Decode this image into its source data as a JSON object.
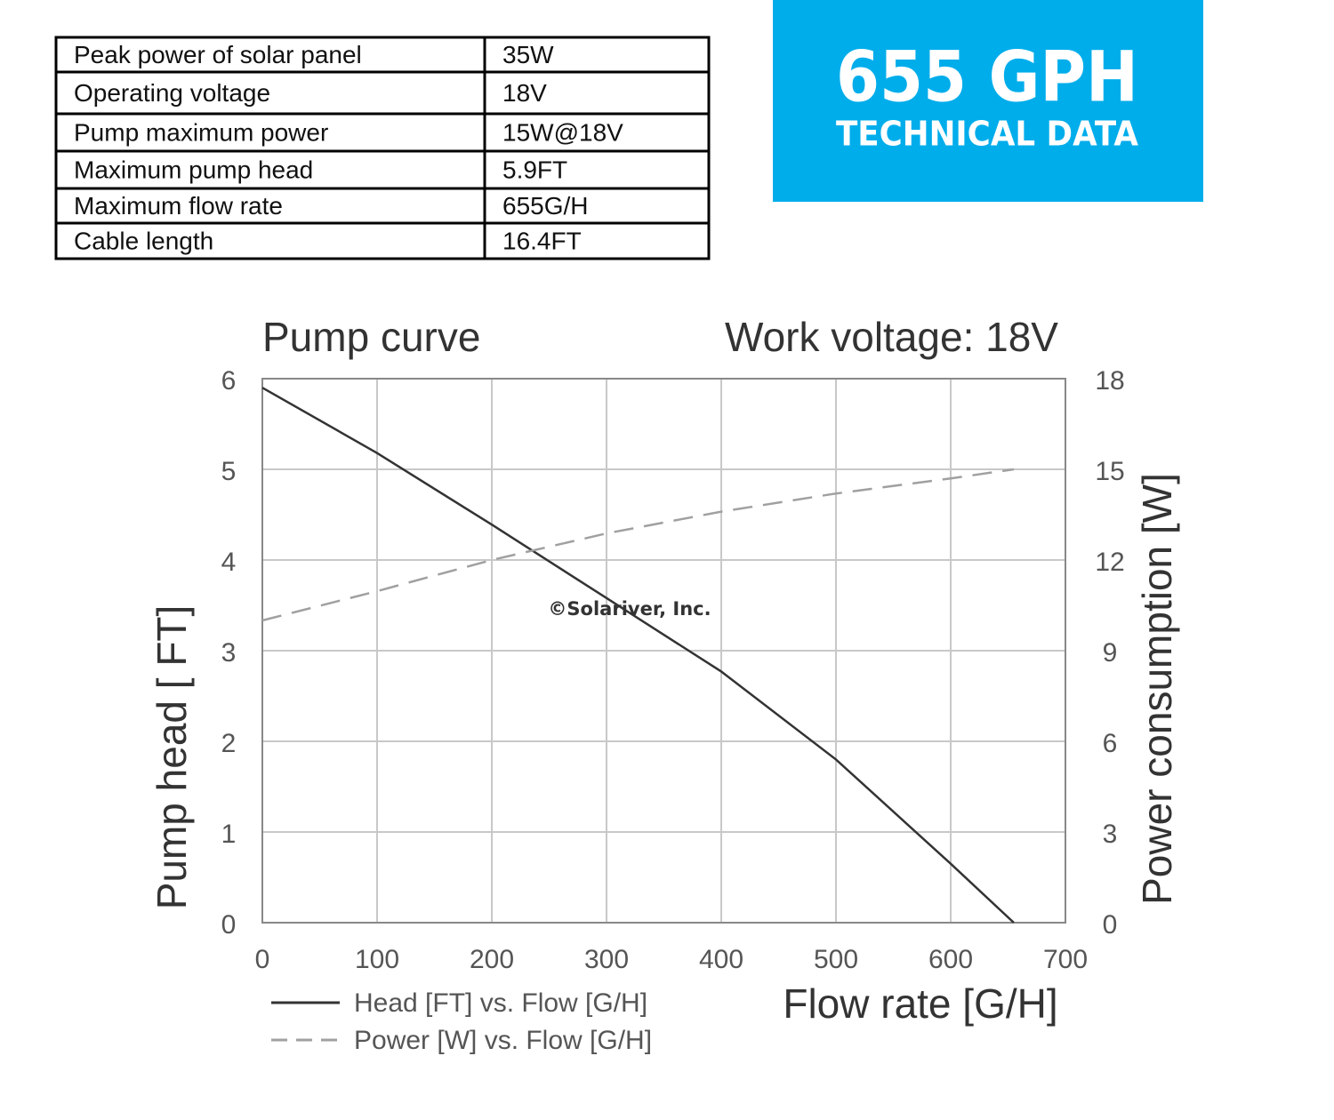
{
  "table": {
    "rows": [
      [
        "Peak power of solar panel",
        "35W"
      ],
      [
        "Operating voltage",
        "18V"
      ],
      [
        "Pump maximum power",
        "15W@18V"
      ],
      [
        "Maximum pump head",
        "5.9FT"
      ],
      [
        "Maximum flow rate",
        "655G/H"
      ],
      [
        "Cable length",
        "16.4FT"
      ]
    ]
  },
  "badge": {
    "title": "655 GPH",
    "subtitle": "TECHNICAL DATA"
  },
  "chart_data": {
    "type": "line",
    "title": "Pump curve",
    "subtitle": "Work voltage: 18V",
    "annotation": "©Solariver, Inc.",
    "x_label": "Flow rate [G/H]",
    "y_label": "Pump head [ FT]",
    "y2_label": "Power consumption [W]",
    "x": [
      0,
      100,
      200,
      300,
      400,
      500,
      600,
      655
    ],
    "series": [
      {
        "name": "Head [FT] vs. Flow [G/H]",
        "color": "#333333",
        "line_style": "solid",
        "values": [
          5.9,
          5.18,
          4.39,
          3.58,
          2.77,
          1.8,
          0.65,
          0
        ]
      },
      {
        "name": "Power [W] vs. Flow [G/H]",
        "color": "#a0a0a0",
        "line_style": "dashed",
        "axis": "y2",
        "values": [
          10,
          10.97,
          12,
          12.88,
          13.6,
          14.2,
          14.7,
          15
        ]
      }
    ],
    "xlim": [
      0,
      700
    ],
    "xticks": [
      0,
      100,
      200,
      300,
      400,
      500,
      600,
      700
    ],
    "ylim": [
      0,
      6
    ],
    "yticks": [
      0,
      1,
      2,
      3,
      4,
      5,
      6
    ],
    "y2lim": [
      0,
      18
    ],
    "y2ticks": [
      0,
      3,
      6,
      9,
      12,
      15,
      18
    ],
    "grid": true
  }
}
